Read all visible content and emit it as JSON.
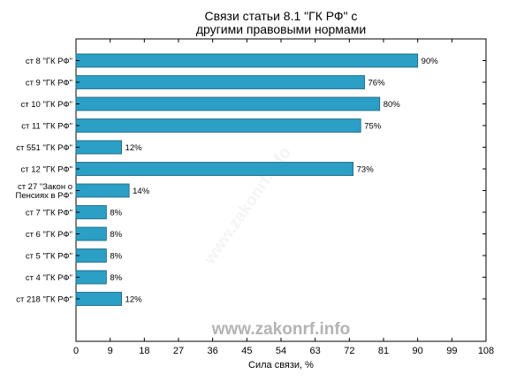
{
  "chart_data": {
    "type": "bar",
    "orientation": "horizontal",
    "title": [
      "Связи статьи 8.1 \"ГК РФ\" с",
      "другими правовыми нормами"
    ],
    "xlabel": "Сила связи, %",
    "ylabel": "",
    "xlim": [
      0,
      108
    ],
    "xticks": [
      0,
      9,
      18,
      27,
      36,
      45,
      54,
      63,
      72,
      81,
      90,
      99,
      108
    ],
    "grid": false,
    "bar_color": "#2b9fc6",
    "categories": [
      [
        "ст 8 \"ГК РФ\""
      ],
      [
        "ст 9 \"ГК РФ\""
      ],
      [
        "ст 10 \"ГК РФ\""
      ],
      [
        "ст 11 \"ГК РФ\""
      ],
      [
        "ст 551 \"ГК РФ\""
      ],
      [
        "ст 12 \"ГК РФ\""
      ],
      [
        "ст 27 \"Закон о",
        "Пенсиях в РФ\""
      ],
      [
        "ст 7 \"ГК РФ\""
      ],
      [
        "ст 6 \"ГК РФ\""
      ],
      [
        "ст 5 \"ГК РФ\""
      ],
      [
        "ст 4 \"ГК РФ\""
      ],
      [
        "ст 218 \"ГК РФ\""
      ]
    ],
    "values": [
      90,
      76,
      80,
      75,
      12,
      73,
      14,
      8,
      8,
      8,
      8,
      12
    ],
    "value_labels": [
      "90%",
      "76%",
      "80%",
      "75%",
      "12%",
      "73%",
      "14%",
      "8%",
      "8%",
      "8%",
      "8%",
      "12%"
    ]
  },
  "watermark": "www.zakonrf.info"
}
